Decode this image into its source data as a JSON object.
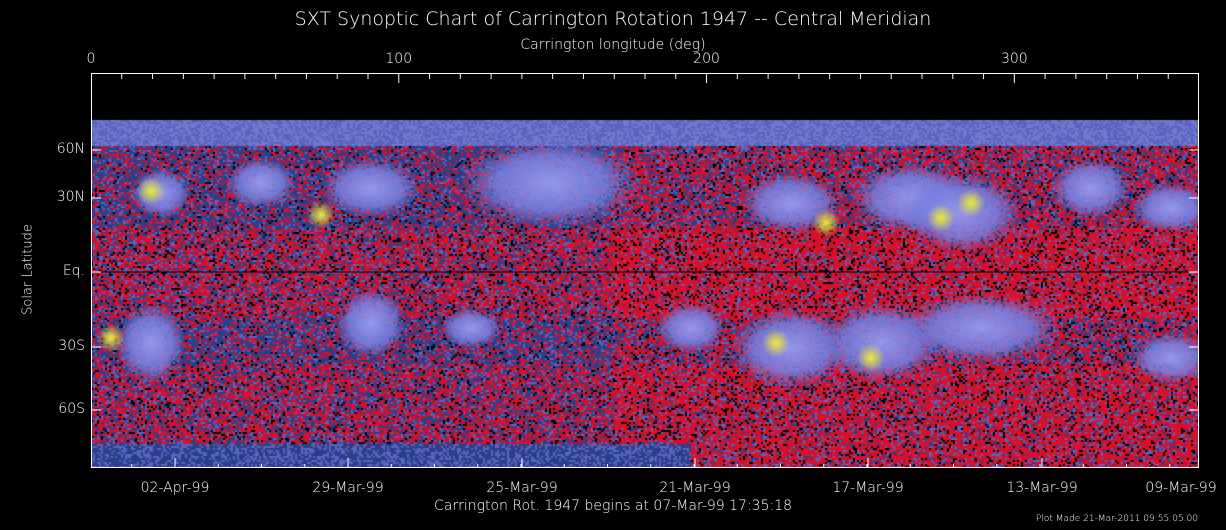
{
  "chart_data": {
    "type": "heatmap",
    "title": "SXT Synoptic Chart of Carrington Rotation 1947 -- Central Meridian",
    "xlabel_top": "Carrington longitude (deg)",
    "xlabel_bottom": "Carrington Rot. 1947 begins at 07-Mar-99 17:35:18",
    "ylabel": "Solar Latitude",
    "xlim": [
      0,
      360
    ],
    "x_ticks_top": [
      "0",
      "100",
      "200",
      "300"
    ],
    "x_ticks_bottom": [
      "02-Apr-99",
      "29-Mar-99",
      "25-Mar-99",
      "21-Mar-99",
      "17-Mar-99",
      "13-Mar-99",
      "09-Mar-99"
    ],
    "y_ticks": [
      "60N",
      "30N",
      "Eq.",
      "30S",
      "60S"
    ],
    "y_scale": "sine latitude",
    "colormap": [
      "#000000",
      "#d8102a",
      "#2a3f8a",
      "#7f86e0",
      "#e8e83a"
    ],
    "footer": "Plot Made 21-Mar-2011 09:55:05.00"
  }
}
